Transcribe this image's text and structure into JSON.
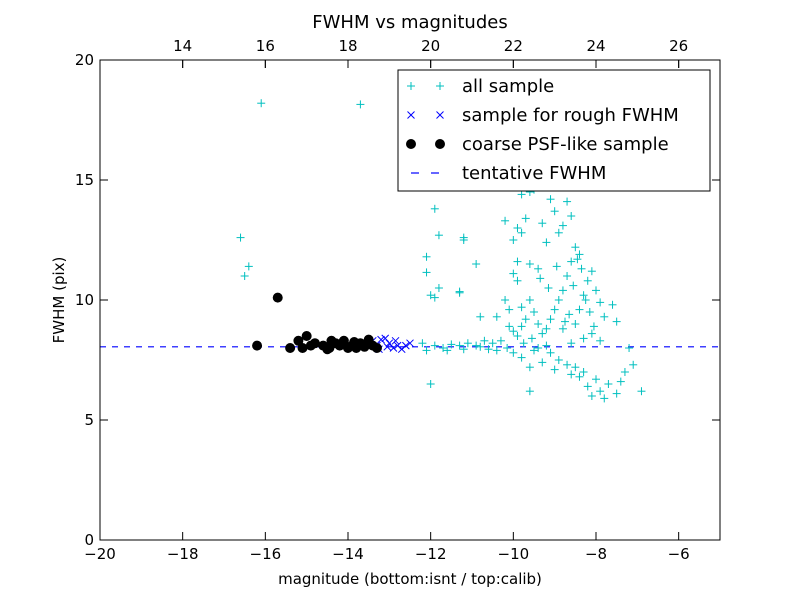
{
  "chart_data": {
    "type": "scatter",
    "title": "FWHM vs magnitudes",
    "xlabel": "magnitude (bottom:isnt / top:calib)",
    "ylabel": "FWHM (pix)",
    "xlim": [
      -20,
      -5
    ],
    "ylim": [
      0,
      20
    ],
    "xticks": [
      -20,
      -18,
      -16,
      -14,
      -12,
      -10,
      -8,
      -6
    ],
    "yticks": [
      0,
      5,
      10,
      15,
      20
    ],
    "top_axis": {
      "ticks": [
        14,
        16,
        18,
        20,
        22,
        24,
        26
      ],
      "offset": 32
    },
    "grid": false,
    "legend_position": "top-right",
    "tentative_fwhm": 8.05,
    "series": [
      {
        "name": "all sample",
        "marker": "plus",
        "color": "#00BFBF",
        "points": [
          [
            -16.6,
            12.6
          ],
          [
            -16.5,
            11.0
          ],
          [
            -16.4,
            11.4
          ],
          [
            -16.1,
            18.2
          ],
          [
            -13.7,
            18.15
          ],
          [
            -11.9,
            13.8
          ],
          [
            -11.8,
            12.7
          ],
          [
            -12.1,
            11.8
          ],
          [
            -12.1,
            11.15
          ],
          [
            -11.8,
            10.5
          ],
          [
            -11.9,
            10.1
          ],
          [
            -12.0,
            10.2
          ],
          [
            -11.2,
            12.6
          ],
          [
            -11.2,
            12.5
          ],
          [
            -11.3,
            10.35
          ],
          [
            -11.3,
            10.3
          ],
          [
            -10.9,
            11.5
          ],
          [
            -10.8,
            9.3
          ],
          [
            -10.4,
            9.3
          ],
          [
            -10.2,
            13.3
          ],
          [
            -10.0,
            12.5
          ],
          [
            -9.9,
            13.0
          ],
          [
            -9.8,
            14.4
          ],
          [
            -9.6,
            14.5
          ],
          [
            -9.5,
            14.6
          ],
          [
            -9.7,
            13.4
          ],
          [
            -9.8,
            12.8
          ],
          [
            -9.9,
            11.6
          ],
          [
            -10.0,
            11.1
          ],
          [
            -9.9,
            10.8
          ],
          [
            -10.2,
            10.0
          ],
          [
            -10.1,
            9.6
          ],
          [
            -9.8,
            9.7
          ],
          [
            -9.6,
            11.5
          ],
          [
            -9.4,
            11.3
          ],
          [
            -9.3,
            13.2
          ],
          [
            -9.2,
            12.4
          ],
          [
            -9.1,
            14.2
          ],
          [
            -9.0,
            13.7
          ],
          [
            -8.9,
            12.8
          ],
          [
            -8.8,
            13.1
          ],
          [
            -8.7,
            14.1
          ],
          [
            -8.6,
            13.5
          ],
          [
            -8.5,
            12.2
          ],
          [
            -8.4,
            11.9
          ],
          [
            -8.6,
            11.6
          ],
          [
            -8.7,
            11.0
          ],
          [
            -8.8,
            10.4
          ],
          [
            -8.9,
            10.0
          ],
          [
            -9.0,
            9.6
          ],
          [
            -9.1,
            9.2
          ],
          [
            -9.2,
            8.8
          ],
          [
            -9.3,
            8.6
          ],
          [
            -9.4,
            9.0
          ],
          [
            -9.5,
            9.5
          ],
          [
            -9.6,
            10.0
          ],
          [
            -9.7,
            9.2
          ],
          [
            -9.8,
            8.9
          ],
          [
            -9.9,
            8.5
          ],
          [
            -10.0,
            8.7
          ],
          [
            -10.1,
            8.9
          ],
          [
            -10.3,
            8.3
          ],
          [
            -10.5,
            8.2
          ],
          [
            -10.7,
            8.3
          ],
          [
            -10.9,
            8.1
          ],
          [
            -11.1,
            8.2
          ],
          [
            -11.3,
            8.1
          ],
          [
            -11.5,
            8.15
          ],
          [
            -11.7,
            8.0
          ],
          [
            -11.9,
            8.1
          ],
          [
            -12.1,
            7.9
          ],
          [
            -12.2,
            8.2
          ],
          [
            -12.0,
            6.5
          ],
          [
            -11.6,
            7.9
          ],
          [
            -11.2,
            7.95
          ],
          [
            -10.8,
            8.05
          ],
          [
            -10.4,
            7.9
          ],
          [
            -10.0,
            7.8
          ],
          [
            -9.8,
            7.6
          ],
          [
            -9.6,
            7.2
          ],
          [
            -9.5,
            7.9
          ],
          [
            -9.3,
            7.4
          ],
          [
            -9.1,
            7.8
          ],
          [
            -9.0,
            7.1
          ],
          [
            -8.9,
            7.5
          ],
          [
            -8.7,
            7.3
          ],
          [
            -8.6,
            6.9
          ],
          [
            -8.5,
            7.2
          ],
          [
            -8.4,
            6.8
          ],
          [
            -8.3,
            7.0
          ],
          [
            -8.2,
            6.4
          ],
          [
            -8.1,
            6.0
          ],
          [
            -8.0,
            6.7
          ],
          [
            -7.9,
            6.2
          ],
          [
            -7.8,
            5.9
          ],
          [
            -7.7,
            6.5
          ],
          [
            -7.5,
            6.1
          ],
          [
            -7.4,
            6.6
          ],
          [
            -7.3,
            7.0
          ],
          [
            -7.1,
            7.3
          ],
          [
            -6.9,
            6.2
          ],
          [
            -9.6,
            6.2
          ],
          [
            -8.5,
            9.0
          ],
          [
            -8.4,
            9.6
          ],
          [
            -8.3,
            10.2
          ],
          [
            -8.2,
            10.8
          ],
          [
            -8.1,
            11.2
          ],
          [
            -8.0,
            10.4
          ],
          [
            -7.9,
            9.9
          ],
          [
            -7.8,
            9.3
          ],
          [
            -7.6,
            9.8
          ],
          [
            -7.5,
            9.1
          ],
          [
            -8.3,
            8.4
          ],
          [
            -8.1,
            8.6
          ],
          [
            -7.9,
            8.3
          ],
          [
            -8.6,
            8.2
          ],
          [
            -8.8,
            8.8
          ],
          [
            -9.2,
            8.1
          ],
          [
            -9.4,
            8.0
          ],
          [
            -7.2,
            8.0
          ],
          [
            -8.45,
            11.7
          ],
          [
            -8.35,
            11.3
          ],
          [
            -8.25,
            10.0
          ],
          [
            -8.55,
            10.6
          ],
          [
            -8.65,
            9.4
          ],
          [
            -8.75,
            9.1
          ],
          [
            -8.15,
            9.5
          ],
          [
            -8.05,
            8.9
          ],
          [
            -8.95,
            11.4
          ],
          [
            -9.15,
            10.5
          ],
          [
            -9.35,
            10.9
          ],
          [
            -9.55,
            8.4
          ],
          [
            -9.75,
            8.2
          ],
          [
            -10.15,
            8.0
          ],
          [
            -10.6,
            7.95
          ]
        ]
      },
      {
        "name": "sample for rough FWHM",
        "marker": "x",
        "color": "#0000FF",
        "points": [
          [
            -13.5,
            8.2
          ],
          [
            -13.4,
            8.3
          ],
          [
            -13.3,
            8.1
          ],
          [
            -13.2,
            8.35
          ],
          [
            -13.1,
            8.4
          ],
          [
            -13.0,
            8.2
          ],
          [
            -12.9,
            8.0
          ],
          [
            -12.8,
            8.1
          ],
          [
            -12.7,
            7.95
          ],
          [
            -12.6,
            8.1
          ],
          [
            -12.5,
            8.2
          ],
          [
            -13.25,
            7.95
          ],
          [
            -13.05,
            8.05
          ],
          [
            -12.85,
            8.3
          ]
        ]
      },
      {
        "name": "coarse PSF-like sample",
        "marker": "dot",
        "color": "#000000",
        "points": [
          [
            -16.2,
            8.1
          ],
          [
            -15.7,
            10.1
          ],
          [
            -15.4,
            8.0
          ],
          [
            -15.2,
            8.3
          ],
          [
            -15.1,
            8.0
          ],
          [
            -15.0,
            8.5
          ],
          [
            -14.9,
            8.1
          ],
          [
            -14.8,
            8.2
          ],
          [
            -14.6,
            8.1
          ],
          [
            -14.5,
            7.95
          ],
          [
            -14.4,
            8.3
          ],
          [
            -14.3,
            8.2
          ],
          [
            -14.2,
            8.1
          ],
          [
            -14.1,
            8.3
          ],
          [
            -14.0,
            8.0
          ],
          [
            -13.9,
            8.1
          ],
          [
            -13.8,
            8.0
          ],
          [
            -13.7,
            8.2
          ],
          [
            -13.6,
            8.05
          ],
          [
            -13.5,
            8.35
          ],
          [
            -13.4,
            8.1
          ],
          [
            -13.3,
            8.0
          ],
          [
            -14.45,
            8.0
          ],
          [
            -13.85,
            8.25
          ]
        ]
      }
    ],
    "reference_line": {
      "name": "tentative FWHM",
      "style": "dashed",
      "color": "#0000FF"
    }
  }
}
